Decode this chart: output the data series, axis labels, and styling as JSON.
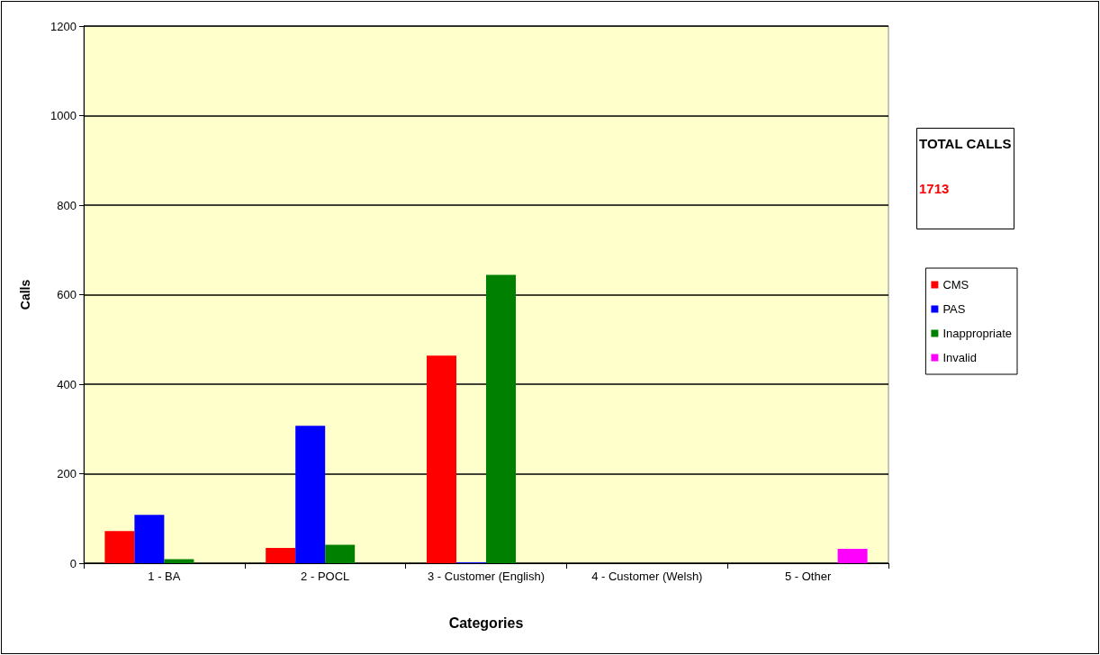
{
  "chart_data": {
    "type": "bar",
    "xlabel": "Categories",
    "ylabel": "Calls",
    "categories": [
      "1 - BA",
      "2 - POCL",
      "3 - Customer (English)",
      "4 - Customer (Welsh)",
      "5 - Other"
    ],
    "series": [
      {
        "name": "CMS",
        "color": "#ff0000",
        "values": [
          72,
          34,
          464,
          0,
          0
        ]
      },
      {
        "name": "PAS",
        "color": "#0000ff",
        "values": [
          108,
          307,
          2,
          0,
          0
        ]
      },
      {
        "name": "Inappropriate",
        "color": "#008000",
        "values": [
          9,
          41,
          644,
          0,
          0
        ]
      },
      {
        "name": "Invalid",
        "color": "#ff00ff",
        "values": [
          0,
          0,
          0,
          0,
          32
        ]
      }
    ],
    "ylim": [
      0,
      1200
    ],
    "yticks": [
      0,
      200,
      400,
      600,
      800,
      1000,
      1200
    ],
    "grid": "y",
    "legend": "right",
    "annotations": [
      "TOTAL CALLS",
      "1713"
    ]
  }
}
